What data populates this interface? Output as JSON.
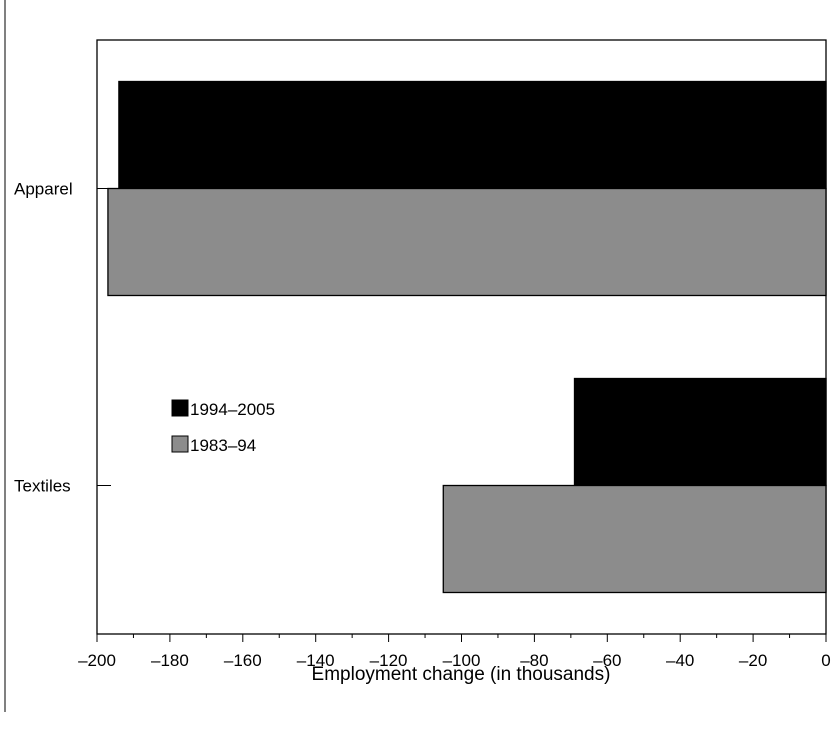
{
  "chart_data": {
    "type": "bar",
    "orientation": "horizontal",
    "title": "",
    "xlabel": "Employment change (in thousands)",
    "ylabel": "",
    "categories": [
      "Apparel",
      "Textiles"
    ],
    "series": [
      {
        "name": "1994–2005",
        "values": [
          -194,
          -69
        ],
        "color": "#000000"
      },
      {
        "name": "1983–94",
        "values": [
          -197,
          -105
        ],
        "color": "#8c8c8c"
      }
    ],
    "xlim": [
      -200,
      0
    ],
    "x_ticks": [
      -200,
      -180,
      -160,
      -140,
      -120,
      -100,
      -80,
      -60,
      -40,
      -20,
      0
    ],
    "x_tick_labels": [
      "–200",
      "–180",
      "–160",
      "–140",
      "–120",
      "–100",
      "–80",
      "–60",
      "–40",
      "–20",
      "0"
    ],
    "grid": false,
    "legend_position": "center-left"
  }
}
